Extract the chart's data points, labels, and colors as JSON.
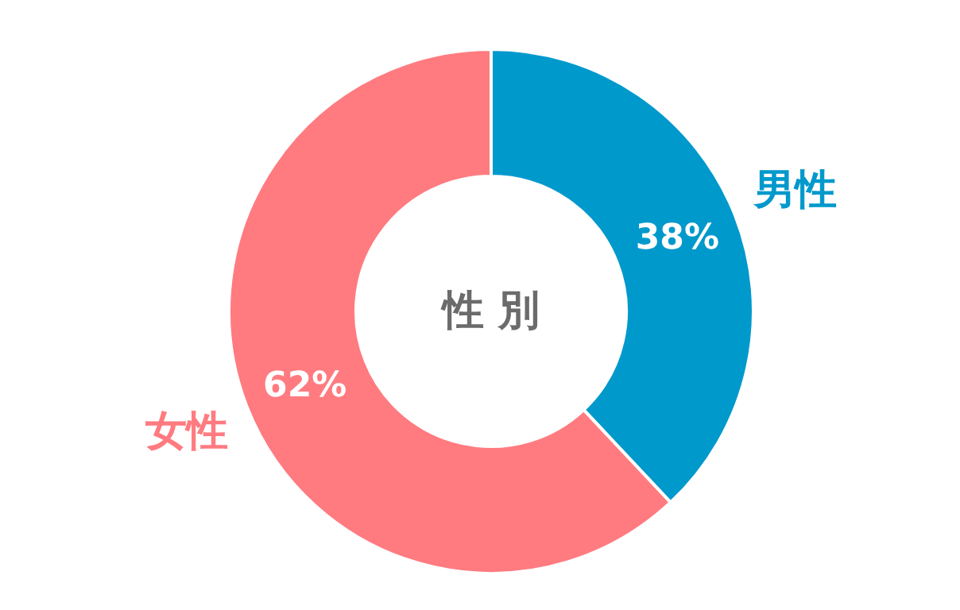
{
  "chart_data": {
    "type": "donut",
    "title": "性 別",
    "categories": [
      "男性",
      "女性"
    ],
    "values": [
      38,
      62
    ],
    "colors": [
      "#0099cc",
      "#ff7b80"
    ],
    "value_labels": [
      "38%",
      "62%"
    ]
  }
}
